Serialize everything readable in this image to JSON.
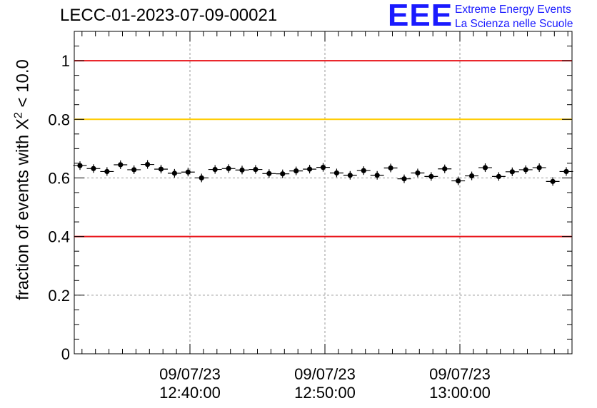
{
  "header": {
    "run_title": "LECC-01-2023-07-09-00021",
    "logo_mark": "EEE",
    "logo_line1": "Extreme Energy Events",
    "logo_line2": "La Scienza nelle Scuole"
  },
  "chart_data": {
    "type": "scatter",
    "title": "LECC-01-2023-07-09-00021",
    "ylabel_pre": "fraction of events with X",
    "ylabel_sup": "2",
    "ylabel_post": " < 10.0",
    "ylabel": "fraction of events with X^2 < 10.0",
    "xlabel": "",
    "ylim": [
      0,
      1.1
    ],
    "yticks": [
      "0",
      "0.2",
      "0.4",
      "0.6",
      "0.8",
      "1"
    ],
    "ytick_values": [
      0,
      0.2,
      0.4,
      0.6,
      0.8,
      1.0
    ],
    "xtick_labels": [
      {
        "date": "09/07/23",
        "time": "12:40:00",
        "minutes_from_1230": 10
      },
      {
        "date": "09/07/23",
        "time": "12:50:00",
        "minutes_from_1230": 20
      },
      {
        "date": "09/07/23",
        "time": "13:00:00",
        "minutes_from_1230": 30
      }
    ],
    "grid": true,
    "reference_lines": [
      {
        "y": 1.0,
        "color": "#e8141a"
      },
      {
        "y": 0.8,
        "color": "#ffcc00"
      },
      {
        "y": 0.4,
        "color": "#e8141a"
      }
    ],
    "series": [
      {
        "values": [
          0.642,
          0.632,
          0.622,
          0.645,
          0.628,
          0.646,
          0.63,
          0.616,
          0.62,
          0.6,
          0.629,
          0.632,
          0.627,
          0.629,
          0.615,
          0.614,
          0.624,
          0.63,
          0.636,
          0.617,
          0.609,
          0.625,
          0.609,
          0.634,
          0.597,
          0.617,
          0.605,
          0.631,
          0.59,
          0.607,
          0.635,
          0.605,
          0.621,
          0.628,
          0.635,
          0.588,
          0.622
        ]
      }
    ],
    "colors": {
      "marker": "#000000",
      "grid": "#999999"
    }
  }
}
